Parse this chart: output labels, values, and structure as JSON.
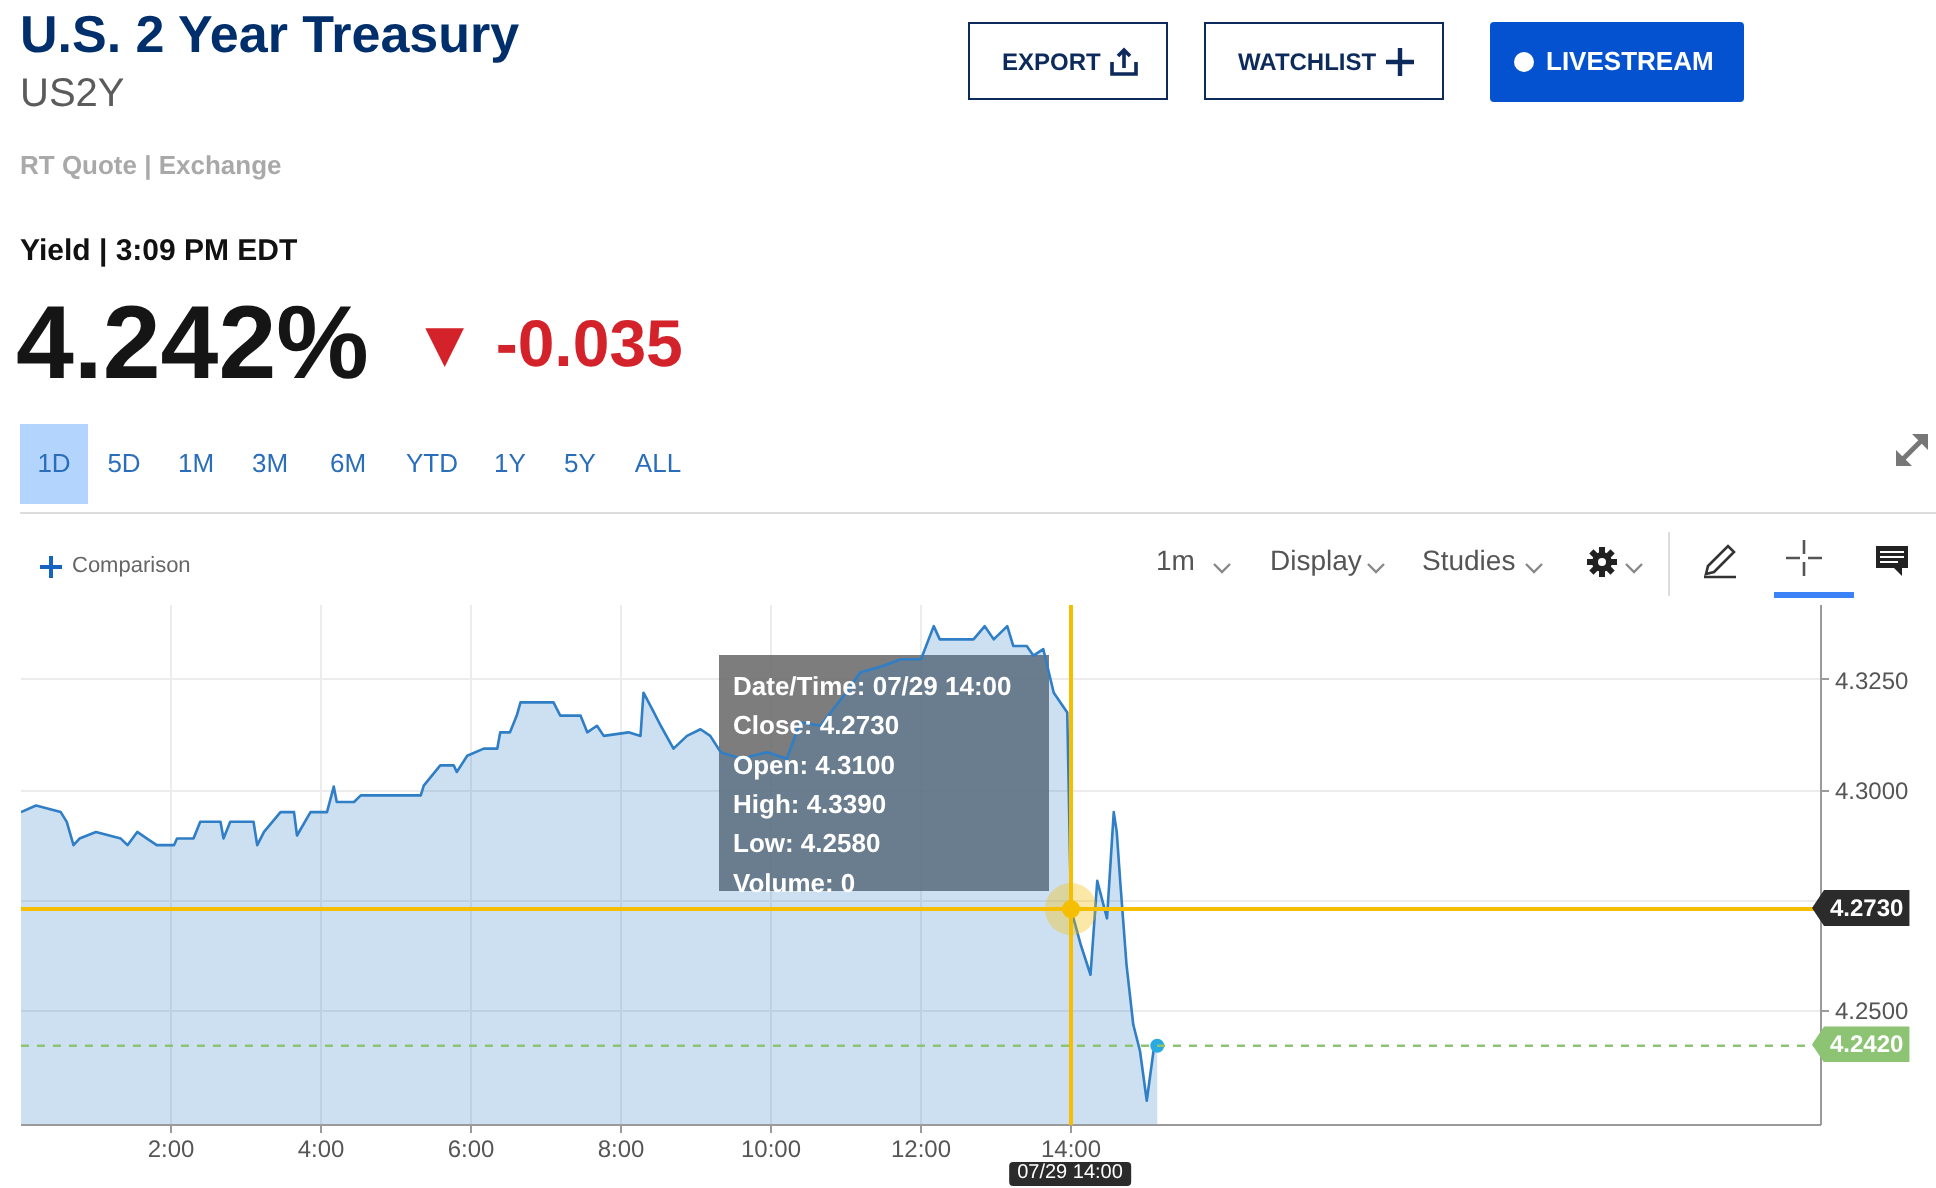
{
  "chart_data": {
    "type": "area",
    "title": "U.S. 2 Year Treasury",
    "subtitle": "US2Y",
    "annotations": [
      "RT Quote | Exchange",
      "Yield | 3:09 PM EDT",
      "4.242%",
      "▼ -0.035",
      "EXPORT",
      "WATCHLIST",
      "LIVESTREAM",
      "1D",
      "5D",
      "1M",
      "3M",
      "6M",
      "YTD",
      "1Y",
      "5Y",
      "ALL",
      "Comparison",
      "1m",
      "Display",
      "Studies",
      {
        "text": "Date/Time: 07/29 14:00\nClose: 4.2730\nOpen: 4.3100\nHigh: 4.3390\nLow: 4.2580\nVolume: 0",
        "x": 14,
        "y": 4.273
      }
    ],
    "color": "#2f7ec6",
    "x": [
      0,
      0.2,
      0.53,
      0.61,
      0.7,
      0.78,
      1.0,
      1.33,
      1.42,
      1.55,
      1.68,
      1.81,
      2.04,
      2.08,
      2.3,
      2.39,
      2.66,
      2.7,
      2.79,
      3.1,
      3.15,
      3.24,
      3.46,
      3.64,
      3.68,
      3.86,
      4.08,
      4.17,
      4.21,
      4.44,
      4.53,
      5.33,
      5.37,
      5.59,
      5.77,
      5.81,
      5.95,
      6.17,
      6.35,
      6.39,
      6.52,
      6.61,
      6.66,
      7.1,
      7.19,
      7.46,
      7.55,
      7.68,
      7.77,
      8.1,
      8.26,
      8.3,
      8.44,
      8.53,
      8.7,
      8.88,
      9.06,
      9.19,
      9.33,
      9.6,
      9.95,
      10.21,
      10.39,
      10.66,
      11.0,
      11.19,
      11.5,
      11.73,
      12.0,
      12.17,
      12.25,
      12.7,
      12.85,
      12.97,
      13.15,
      13.23,
      13.41,
      13.5,
      13.63,
      13.77,
      13.95,
      14.0,
      14.13,
      14.26,
      14.35,
      14.48,
      14.57,
      14.61,
      14.66,
      14.74,
      14.83,
      14.92,
      15.01,
      15.1,
      15.15
    ],
    "values": [
      4.295,
      4.2965,
      4.295,
      4.2928,
      4.2875,
      4.289,
      4.2905,
      4.289,
      4.2875,
      4.2905,
      4.289,
      4.2875,
      4.2875,
      4.289,
      4.289,
      4.2928,
      4.2928,
      4.289,
      4.2928,
      4.2928,
      4.2875,
      4.2905,
      4.295,
      4.295,
      4.2897,
      4.295,
      4.295,
      4.3008,
      4.2973,
      4.2973,
      4.2988,
      4.2988,
      4.301,
      4.3056,
      4.3056,
      4.3041,
      4.3078,
      4.3094,
      4.3094,
      4.3131,
      4.3131,
      4.3169,
      4.3199,
      4.3199,
      4.3169,
      4.3169,
      4.3131,
      4.3146,
      4.3123,
      4.3131,
      4.3123,
      4.3221,
      4.3176,
      4.3146,
      4.3094,
      4.3123,
      4.3138,
      4.3123,
      4.3086,
      4.3071,
      4.3086,
      4.3071,
      4.3154,
      4.3146,
      4.3221,
      4.3267,
      4.3282,
      4.3297,
      4.3297,
      4.3372,
      4.3342,
      4.3342,
      4.3372,
      4.3342,
      4.3372,
      4.3327,
      4.3327,
      4.3305,
      4.332,
      4.3221,
      4.3176,
      4.273,
      4.2649,
      4.2581,
      4.2794,
      4.2709,
      4.295,
      4.2905,
      4.2784,
      4.2604,
      4.2468,
      4.2408,
      4.2295,
      4.2408,
      4.242
    ],
    "xlim": [
      0,
      24
    ],
    "xticks": [
      {
        "value": 2,
        "label": "2:00"
      },
      {
        "value": 4,
        "label": "4:00"
      },
      {
        "value": 6,
        "label": "6:00"
      },
      {
        "value": 8,
        "label": "8:00"
      },
      {
        "value": 10,
        "label": "10:00"
      },
      {
        "value": 12,
        "label": "12:00"
      },
      {
        "value": 14,
        "label": "14:00"
      }
    ],
    "ylim": [
      4.224,
      4.342
    ],
    "yticks": [
      {
        "value": 4.25,
        "label": "4.2500"
      },
      {
        "value": 4.275,
        "label": null
      },
      {
        "value": 4.3,
        "label": "4.3000"
      },
      {
        "value": 4.325,
        "label": "4.3250"
      }
    ],
    "ref_lines": [
      {
        "axis": "x",
        "value": 14,
        "label": "07/29 14:00",
        "color": "#f5be00"
      },
      {
        "axis": "y",
        "value": 4.273,
        "label": "4.2730",
        "color": "#f5be00"
      },
      {
        "axis": "y",
        "value": 4.242,
        "label": "4.2420",
        "color": "#8cc474",
        "line_style": "dashed"
      }
    ],
    "grid": true
  }
}
